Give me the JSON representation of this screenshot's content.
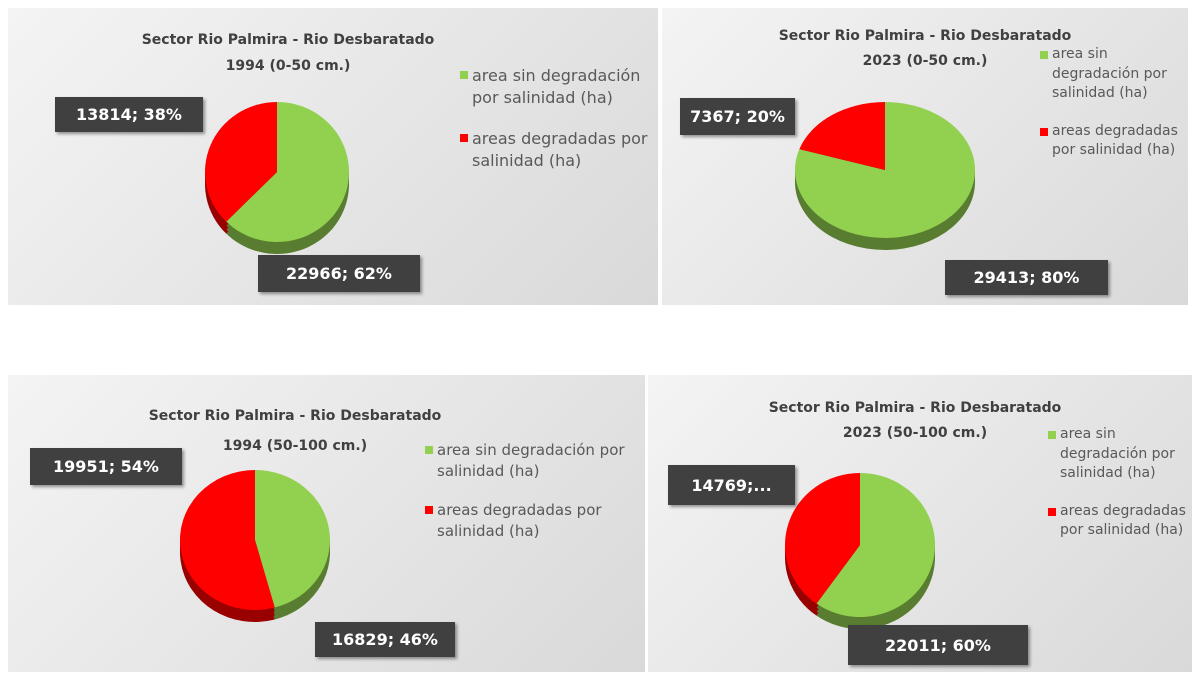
{
  "chart_data": [
    {
      "type": "pie",
      "title": "Sector Rio Palmira - Rio Desbaratado",
      "subtitle": "1994 (0-50 cm.)",
      "categories": [
        "area sin degradación por salinidad (ha)",
        "areas degradadas por salinidad (ha)"
      ],
      "values": [
        22966,
        13814
      ],
      "value_labels": [
        "22966; 62%",
        "13814; 38%"
      ],
      "colors": [
        "#92d050",
        "#ff0000"
      ]
    },
    {
      "type": "pie",
      "title": "Sector Rio Palmira - Rio Desbaratado",
      "subtitle": "2023 (0-50 cm.)",
      "categories": [
        "area sin degradación por salinidad (ha)",
        "areas degradadas por salinidad (ha)"
      ],
      "values": [
        29413,
        7367
      ],
      "value_labels": [
        "29413; 80%",
        "7367; 20%"
      ],
      "colors": [
        "#92d050",
        "#ff0000"
      ]
    },
    {
      "type": "pie",
      "title": "Sector Rio Palmira - Rio Desbaratado",
      "subtitle": "1994 (50-100 cm.)",
      "categories": [
        "area sin degradación por salinidad (ha)",
        "areas degradadas por salinidad (ha)"
      ],
      "values": [
        16829,
        19951
      ],
      "value_labels": [
        "16829; 46%",
        "19951; 54%"
      ],
      "colors": [
        "#92d050",
        "#ff0000"
      ]
    },
    {
      "type": "pie",
      "title": "Sector Rio Palmira - Rio Desbaratado",
      "subtitle": "2023 (50-100 cm.)",
      "categories": [
        "area sin degradación por salinidad (ha)",
        "areas degradadas por salinidad (ha)"
      ],
      "values": [
        22011,
        14769
      ],
      "value_labels": [
        "22011; 60%",
        "14769;..."
      ],
      "colors": [
        "#92d050",
        "#ff0000"
      ]
    }
  ]
}
